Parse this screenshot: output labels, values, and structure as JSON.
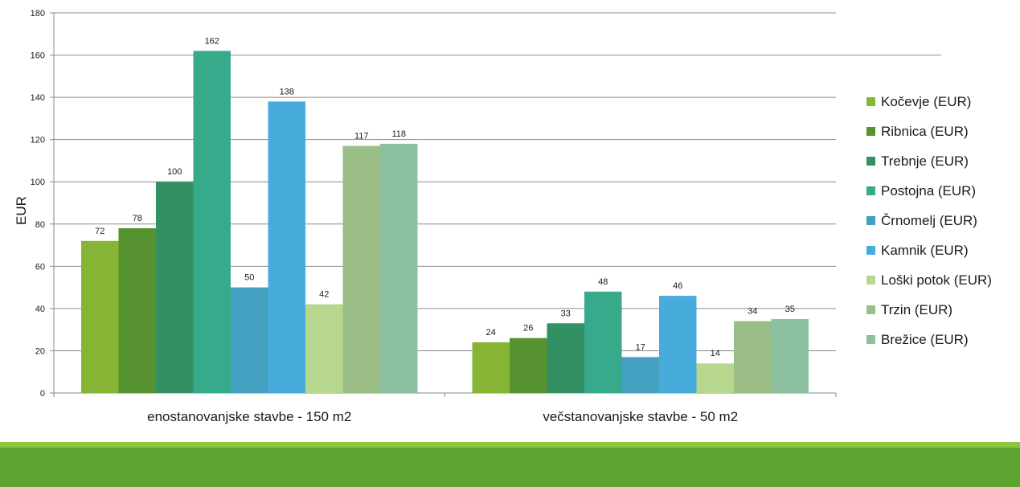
{
  "chart_data": {
    "type": "bar",
    "title": "",
    "xlabel": "",
    "ylabel": "EUR",
    "ylim": [
      0,
      180
    ],
    "yticks": [
      0,
      20,
      40,
      60,
      80,
      100,
      120,
      140,
      160,
      180
    ],
    "grid": true,
    "legend_position": "right",
    "categories": [
      "enostanovanjske stavbe - 150 m2",
      "večstanovanjske stavbe - 50 m2"
    ],
    "series": [
      {
        "name": "Kočevje (EUR)",
        "color": "#86b535",
        "values": [
          72,
          24
        ]
      },
      {
        "name": "Ribnica (EUR)",
        "color": "#56922f",
        "values": [
          78,
          26
        ]
      },
      {
        "name": "Trebnje (EUR)",
        "color": "#339062",
        "values": [
          100,
          33
        ]
      },
      {
        "name": "Postojna (EUR)",
        "color": "#38aa8c",
        "values": [
          162,
          48
        ]
      },
      {
        "name": "Črnomelj (EUR)",
        "color": "#43a0c0",
        "values": [
          50,
          17
        ]
      },
      {
        "name": "Kamnik (EUR)",
        "color": "#47abdc",
        "values": [
          138,
          46
        ]
      },
      {
        "name": "Loški potok (EUR)",
        "color": "#b6d78d",
        "values": [
          42,
          14
        ]
      },
      {
        "name": "Trzin (EUR)",
        "color": "#9bbd88",
        "values": [
          117,
          34
        ]
      },
      {
        "name": "Brežice (EUR)",
        "color": "#8cc09f",
        "values": [
          118,
          35
        ]
      }
    ]
  },
  "colors": {
    "footer_light": "#8cc63f",
    "footer_dark": "#5fa431"
  }
}
